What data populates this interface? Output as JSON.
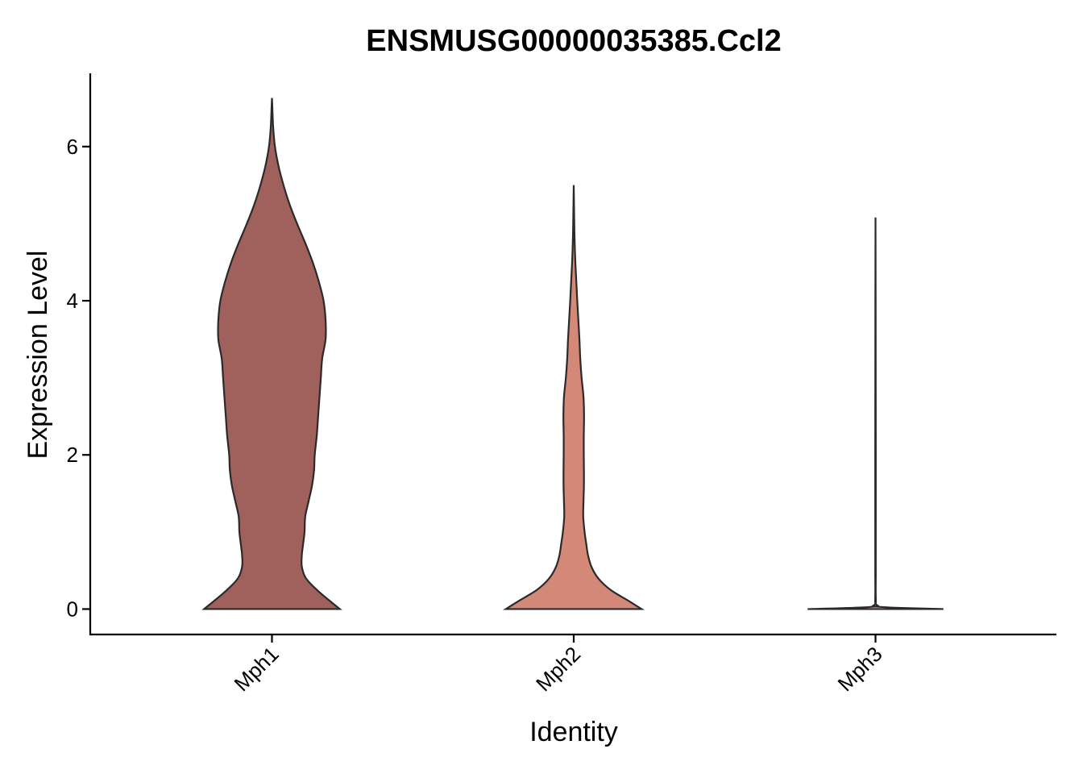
{
  "chart_data": {
    "type": "violin",
    "title": "ENSMUSG00000035385.Ccl2",
    "xlabel": "Identity",
    "ylabel": "Expression Level",
    "categories": [
      "Mph1",
      "Mph2",
      "Mph3"
    ],
    "ylim": [
      -0.33,
      6.95
    ],
    "yticks": [
      0,
      2,
      4,
      6
    ],
    "ytick_labels": [
      "0",
      "2",
      "4",
      "6"
    ],
    "xtick_rotation": -45,
    "grid": false,
    "legend": "none",
    "colors": {
      "Mph1": "#a0605c",
      "Mph2": "#d38878",
      "Mph3": "#f5c8b8",
      "outline": "#2a2a2a"
    },
    "series": [
      {
        "category": "Mph1",
        "max": 6.63,
        "density": [
          [
            0.0,
            0.5
          ],
          [
            0.1,
            0.43
          ],
          [
            0.25,
            0.33
          ],
          [
            0.4,
            0.25
          ],
          [
            0.55,
            0.22
          ],
          [
            0.7,
            0.22
          ],
          [
            0.85,
            0.23
          ],
          [
            1.0,
            0.24
          ],
          [
            1.2,
            0.245
          ],
          [
            1.4,
            0.27
          ],
          [
            1.6,
            0.295
          ],
          [
            1.8,
            0.31
          ],
          [
            2.0,
            0.315
          ],
          [
            2.25,
            0.33
          ],
          [
            2.5,
            0.34
          ],
          [
            2.75,
            0.35
          ],
          [
            3.0,
            0.36
          ],
          [
            3.25,
            0.37
          ],
          [
            3.5,
            0.395
          ],
          [
            3.75,
            0.395
          ],
          [
            4.0,
            0.38
          ],
          [
            4.25,
            0.345
          ],
          [
            4.5,
            0.3
          ],
          [
            4.75,
            0.245
          ],
          [
            5.0,
            0.185
          ],
          [
            5.25,
            0.13
          ],
          [
            5.5,
            0.085
          ],
          [
            5.75,
            0.048
          ],
          [
            6.0,
            0.022
          ],
          [
            6.25,
            0.009
          ],
          [
            6.5,
            0.003
          ],
          [
            6.63,
            0.0
          ]
        ]
      },
      {
        "category": "Mph2",
        "max": 5.5,
        "density": [
          [
            0.0,
            0.5
          ],
          [
            0.1,
            0.41
          ],
          [
            0.25,
            0.27
          ],
          [
            0.4,
            0.18
          ],
          [
            0.55,
            0.13
          ],
          [
            0.7,
            0.105
          ],
          [
            0.85,
            0.092
          ],
          [
            1.0,
            0.08
          ],
          [
            1.2,
            0.07
          ],
          [
            1.4,
            0.072
          ],
          [
            1.6,
            0.075
          ],
          [
            1.8,
            0.075
          ],
          [
            2.0,
            0.074
          ],
          [
            2.25,
            0.074
          ],
          [
            2.5,
            0.076
          ],
          [
            2.75,
            0.072
          ],
          [
            3.0,
            0.058
          ],
          [
            3.25,
            0.048
          ],
          [
            3.5,
            0.042
          ],
          [
            3.75,
            0.034
          ],
          [
            4.0,
            0.026
          ],
          [
            4.25,
            0.019
          ],
          [
            4.5,
            0.012
          ],
          [
            4.75,
            0.007
          ],
          [
            5.0,
            0.004
          ],
          [
            5.25,
            0.002
          ],
          [
            5.5,
            0.0
          ]
        ]
      },
      {
        "category": "Mph3",
        "max": 5.08,
        "density": [
          [
            0.0,
            0.5
          ],
          [
            0.03,
            0.02
          ],
          [
            0.1,
            0.003
          ],
          [
            0.5,
            0.002
          ],
          [
            1.0,
            0.002
          ],
          [
            2.0,
            0.002
          ],
          [
            3.0,
            0.0015
          ],
          [
            4.0,
            0.001
          ],
          [
            5.08,
            0.0
          ]
        ]
      }
    ]
  }
}
